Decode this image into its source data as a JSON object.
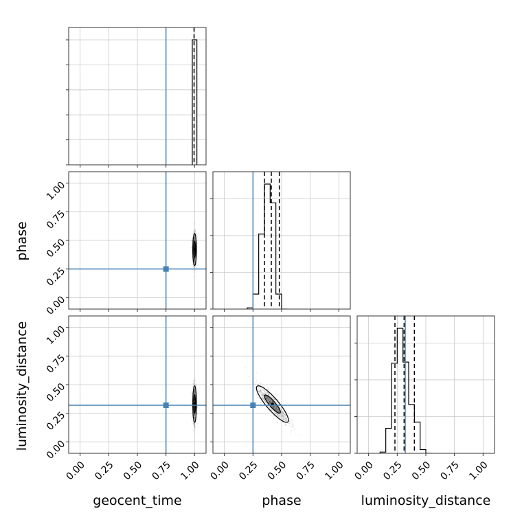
{
  "chart_data": {
    "type": "corner",
    "parameters": [
      "geocent_time",
      "phase",
      "luminosity_distance"
    ],
    "axis_labels": {
      "x": [
        "geocent_time",
        "phase",
        "luminosity_distance"
      ],
      "y": [
        "phase",
        "luminosity_distance"
      ]
    },
    "range": [
      -0.1,
      1.1
    ],
    "ticks": [
      0.0,
      0.25,
      0.5,
      0.75,
      1.0
    ],
    "tick_labels": [
      "0.00",
      "0.25",
      "0.50",
      "0.75",
      "1.00"
    ],
    "grid": true,
    "colors": {
      "truth": "#4682b4",
      "hist": "#000000",
      "quantile": "#000000",
      "samples": "#000000"
    },
    "truths": {
      "geocent_time": 0.75,
      "phase": 0.25,
      "luminosity_distance": 0.32
    },
    "histograms": [
      {
        "parameter": "geocent_time",
        "edges": [
          0.98,
          1.02
        ],
        "counts": [
          1.0
        ],
        "quantiles": [
          0.995
        ]
      },
      {
        "parameter": "phase",
        "edges": [
          0.2,
          0.25,
          0.3,
          0.35,
          0.4,
          0.45,
          0.5,
          0.55
        ],
        "counts": [
          0.01,
          0.12,
          0.6,
          1.0,
          0.85,
          0.12,
          0.0
        ],
        "quantiles": [
          0.35,
          0.41,
          0.48
        ]
      },
      {
        "parameter": "luminosity_distance",
        "edges": [
          0.1,
          0.15,
          0.2,
          0.25,
          0.3,
          0.35,
          0.4,
          0.45,
          0.5,
          0.55
        ],
        "counts": [
          0.01,
          0.2,
          0.72,
          1.0,
          0.73,
          0.39,
          0.25,
          0.03,
          0.0
        ],
        "quantiles": [
          0.23,
          0.31,
          0.4
        ]
      }
    ],
    "joint": [
      {
        "x": "geocent_time",
        "y": "phase",
        "center": [
          1.0,
          0.42
        ],
        "spread": [
          0.008,
          0.07
        ],
        "rho": 0.0
      },
      {
        "x": "geocent_time",
        "y": "luminosity_distance",
        "center": [
          1.0,
          0.33
        ],
        "spread": [
          0.008,
          0.08
        ],
        "rho": 0.0
      },
      {
        "x": "phase",
        "y": "luminosity_distance",
        "center": [
          0.42,
          0.33
        ],
        "spread": [
          0.07,
          0.08
        ],
        "rho": -0.88
      }
    ]
  }
}
